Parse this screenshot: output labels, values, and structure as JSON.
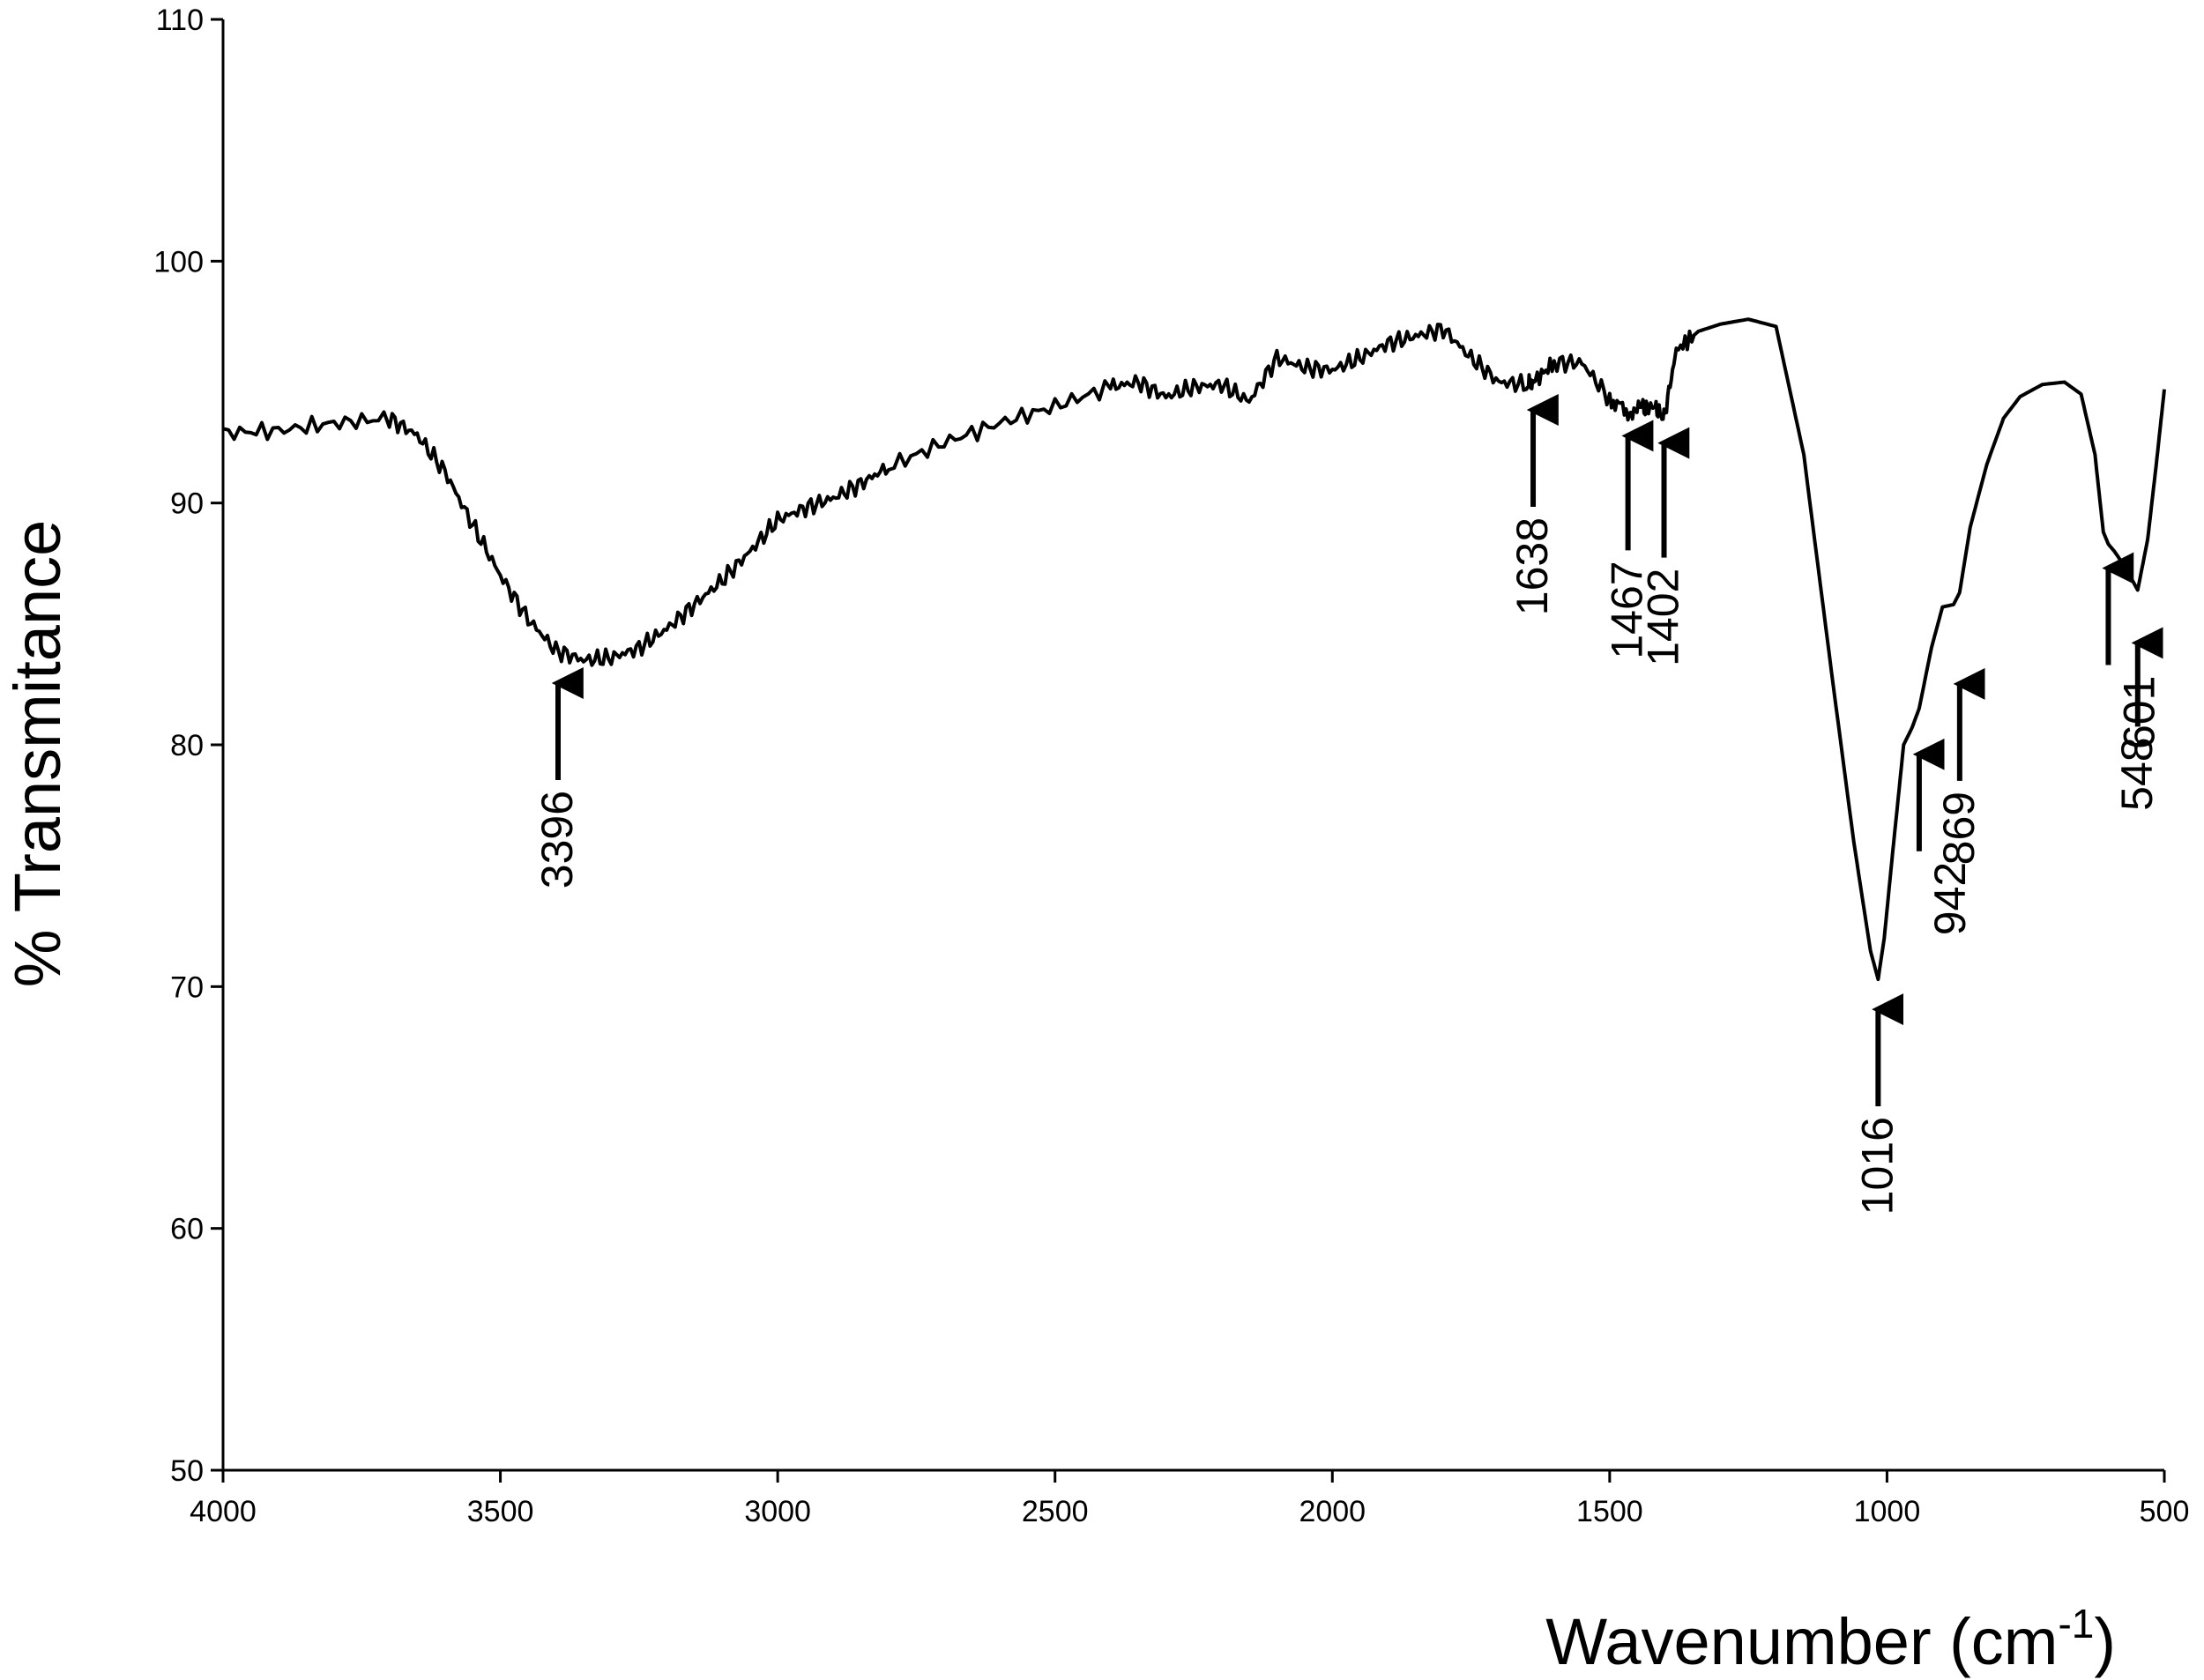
{
  "chart_data": {
    "type": "line",
    "title": "",
    "xlabel": "Wavenumber (cm",
    "xlabel_sup": "-1",
    "xlabel_close": ")",
    "ylabel": "% Transmitance",
    "xlim": [
      4000,
      500
    ],
    "ylim": [
      50,
      110
    ],
    "x_reversed": true,
    "grid": false,
    "legend": "none",
    "line_color": "#000000",
    "xticks": [
      "4000",
      "3500",
      "3000",
      "2500",
      "2000",
      "1500",
      "1000",
      "500"
    ],
    "yticks": [
      "50",
      "60",
      "70",
      "80",
      "90",
      "100",
      "110"
    ],
    "series": [
      {
        "x": [
          4000,
          3900,
          3800,
          3700,
          3650,
          3600,
          3550,
          3500,
          3450,
          3400,
          3350,
          3300,
          3250,
          3200,
          3150,
          3100,
          3050,
          3000,
          2950,
          2900,
          2850,
          2800,
          2700,
          2600,
          2500,
          2400,
          2350,
          2300,
          2250,
          2200,
          2150,
          2100,
          2050,
          2000,
          1950,
          1900,
          1850,
          1800,
          1750,
          1700,
          1650,
          1638,
          1600,
          1550,
          1500,
          1467,
          1440,
          1420,
          1402,
          1380,
          1340,
          1300,
          1250,
          1200,
          1150,
          1100,
          1060,
          1030,
          1016,
          1005,
          990,
          970,
          955,
          942,
          920,
          900,
          880,
          869,
          850,
          820,
          790,
          760,
          720,
          680,
          650,
          625,
          610,
          601,
          590,
          575,
          560,
          548,
          530,
          515,
          500
        ],
        "y": [
          92.9,
          93.0,
          93.3,
          93.5,
          92.8,
          91.3,
          89.1,
          87.0,
          85.2,
          83.9,
          83.5,
          83.6,
          84.0,
          84.8,
          85.8,
          86.8,
          88.0,
          89.3,
          89.8,
          90.2,
          90.8,
          91.5,
          92.5,
          93.3,
          94.0,
          94.8,
          95.0,
          94.4,
          94.8,
          94.9,
          94.2,
          96.0,
          95.6,
          95.5,
          96.0,
          96.6,
          96.9,
          97.2,
          96.0,
          95.0,
          94.9,
          95.0,
          95.8,
          95.8,
          94.3,
          93.8,
          93.9,
          94.0,
          93.5,
          96.3,
          97.1,
          97.4,
          97.6,
          97.3,
          92.0,
          83.0,
          76.0,
          71.5,
          70.3,
          72.0,
          75.5,
          80.0,
          80.7,
          81.5,
          84.0,
          85.7,
          85.8,
          86.3,
          89.0,
          91.6,
          93.5,
          94.4,
          94.9,
          95.0,
          94.5,
          92.0,
          88.8,
          88.3,
          88.0,
          87.5,
          86.9,
          86.4,
          88.5,
          91.5,
          94.7
        ]
      }
    ],
    "annotations": [
      {
        "label": "3396",
        "x": 3396,
        "y": 83.5
      },
      {
        "label": "1638",
        "x": 1638,
        "y": 94.8
      },
      {
        "label": "1467",
        "x": 1467,
        "y": 93.8
      },
      {
        "label": "1402",
        "x": 1402,
        "y": 93.5
      },
      {
        "label": "1016",
        "x": 1016,
        "y": 70.3
      },
      {
        "label": "942",
        "x": 942,
        "y": 80.7
      },
      {
        "label": "869",
        "x": 869,
        "y": 85.8
      },
      {
        "label": "601",
        "x": 601,
        "y": 88.4
      },
      {
        "label": "548",
        "x": 548,
        "y": 86.4
      }
    ]
  }
}
